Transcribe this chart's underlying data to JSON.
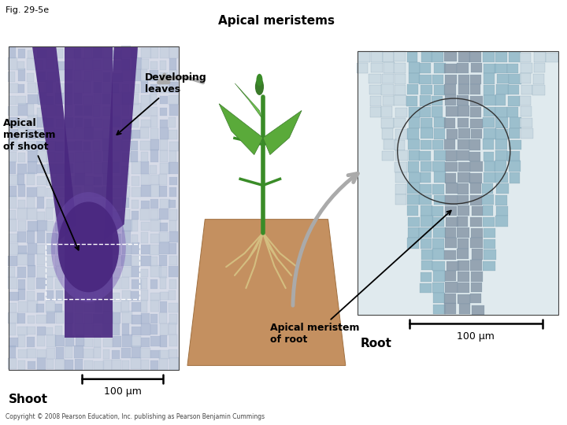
{
  "fig_label": "Fig. 29-5e",
  "title": "Apical meristems",
  "copyright": "Copyright © 2008 Pearson Education, Inc. publishing as Pearson Benjamin Cummings",
  "labels": {
    "apical_meristem_shoot": "Apical\nmeristem\nof shoot",
    "developing_leaves": "Developing\nleaves",
    "shoot": "Shoot",
    "scale_shoot": "100 µm",
    "apical_meristem_root": "Apical meristem\nof root",
    "root": "Root",
    "scale_root": "100 µm"
  },
  "layout": {
    "shoot_img": [
      0.015,
      0.13,
      0.3,
      0.76
    ],
    "plant_img": [
      0.315,
      0.1,
      0.31,
      0.8
    ],
    "root_img": [
      0.63,
      0.26,
      0.355,
      0.62
    ]
  },
  "shoot_colors": {
    "bg": "#d8dce8",
    "cell_light": "#c0ccdc",
    "cell_mid": "#a0b0cc",
    "cell_edge": "#8899bb",
    "purple_dark": "#4a2880",
    "purple_mid": "#7050b0",
    "purple_light": "#9070c8"
  },
  "plant_colors": {
    "leaf_dark": "#3a7a2a",
    "leaf_mid": "#5aaa3a",
    "leaf_light": "#70c050",
    "stem": "#3a8c28",
    "soil": "#c49060",
    "soil_edge": "#a07040",
    "root_line": "#d4be80"
  },
  "root_colors": {
    "bg": "#c8d8e0",
    "bg2": "#e0eaee",
    "cell_top": "#8898a8",
    "cell_edge": "#6888a0",
    "tip_dark": "#5070a0",
    "tip_light": "#90b8c8"
  },
  "colors": {
    "bg": "#ffffff",
    "black": "#000000",
    "arrow_gray": "#aaaaaa",
    "dash_white": "#ffffff"
  },
  "font": {
    "fig_label": 8,
    "title": 11,
    "label": 9,
    "copyright": 5.5
  }
}
